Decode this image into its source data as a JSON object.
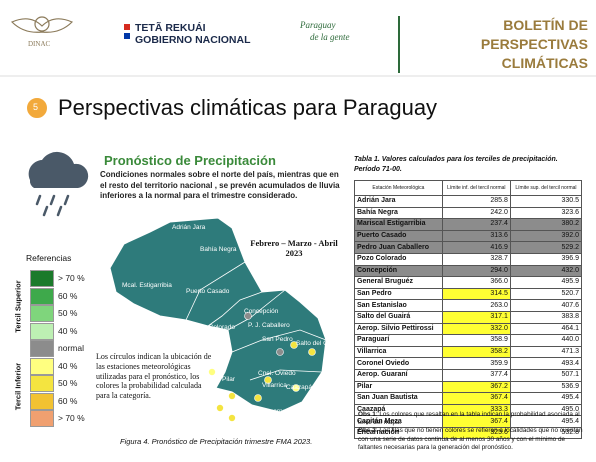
{
  "header": {
    "logo": "DINAC",
    "gov_line1": "TETÃ REKUÁI",
    "gov_line2": "GOBIERNO NACIONAL",
    "slogan_line1": "Paraguay",
    "slogan_line2": "de la gente",
    "bulletin": "BOLETÍN DE PERSPECTIVAS CLIMÁTICAS"
  },
  "section": {
    "number": "5",
    "title": "Perspectivas climáticas para Paraguay"
  },
  "forecast": {
    "subtitle": "Pronóstico de Precipitación",
    "text": "Condiciones normales sobre el norte del país, mientras que en el resto del territorio nacional , se prevén acumulados de lluvia inferiores a la normal para el trimestre considerado.",
    "period": "Febrero – Marzo - Abril 2023",
    "note": "Los círculos indican la ubicación de las estaciones meteorológicas utilizadas para el pronóstico, los colores la probabilidad calculada para la categoría.",
    "caption": "Figura 4. Pronóstico de Precipitación trimestre FMA 2023.",
    "map_labels": [
      "Adrián Jara",
      "Bahía Negra",
      "Mcal. Estigarribia",
      "Puerto Casado",
      "Concepción",
      "P. J. Caballero",
      "Pozo Colorado",
      "San Pedro",
      "Salto del Guairá",
      "Cnel. Oviedo",
      "Villarrica",
      "Caazapá",
      "Pilar",
      "Encarnación"
    ]
  },
  "legend": {
    "title": "Referencias",
    "upper": "Tercil Superior",
    "lower": "Tercil Inferior",
    "items": [
      {
        "label": "> 70 %",
        "color": "#1b7a2b"
      },
      {
        "label": "60 %",
        "color": "#3ea94b"
      },
      {
        "label": "50 %",
        "color": "#7fd57c"
      },
      {
        "label": "40 %",
        "color": "#bdf0b3"
      },
      {
        "label": "normal",
        "color": "#8c8c8c"
      },
      {
        "label": "40 %",
        "color": "#ffff80"
      },
      {
        "label": "50 %",
        "color": "#f4e440"
      },
      {
        "label": "60 %",
        "color": "#f2c232"
      },
      {
        "label": "> 70 %",
        "color": "#f0a070"
      }
    ]
  },
  "table": {
    "title": "Tabla 1. Valores calculados para los terciles de precipitación.",
    "period": "Período 71-00.",
    "headers": [
      "Estación Meteorológica",
      "Límite inf. del tercil normal",
      "Límite sup. del tercil normal"
    ],
    "rows": [
      {
        "cells": [
          "Adrián Jara",
          "285.8",
          "330.5"
        ]
      },
      {
        "cells": [
          "Bahía Negra",
          "242.0",
          "323.6"
        ]
      },
      {
        "cells": [
          "Mariscal Estigarribia",
          "237.4",
          "380.2"
        ],
        "row_color": "#8c8c8c"
      },
      {
        "cells": [
          "Puerto Casado",
          "313.6",
          "392.0"
        ],
        "row_color": "#8c8c8c"
      },
      {
        "cells": [
          "Pedro Juan Caballero",
          "416.9",
          "529.2"
        ],
        "row_color": "#8c8c8c"
      },
      {
        "cells": [
          "Pozo Colorado",
          "328.7",
          "396.9"
        ]
      },
      {
        "cells": [
          "Concepción",
          "294.0",
          "432.0"
        ],
        "row_color": "#8c8c8c"
      },
      {
        "cells": [
          "General Bruguéz",
          "366.0",
          "495.9"
        ]
      },
      {
        "cells": [
          "San Pedro",
          "314.5",
          "520.7"
        ],
        "inf_color": "#ffff33"
      },
      {
        "cells": [
          "San Estanislao",
          "263.0",
          "407.6"
        ]
      },
      {
        "cells": [
          "Salto del Guairá",
          "317.1",
          "383.8"
        ],
        "inf_color": "#ffff33"
      },
      {
        "cells": [
          "Aerop. Silvio Pettirossi",
          "332.0",
          "464.1"
        ],
        "inf_color": "#ffff33"
      },
      {
        "cells": [
          "Paraguarí",
          "358.9",
          "440.0"
        ]
      },
      {
        "cells": [
          "Villarrica",
          "358.2",
          "471.3"
        ],
        "inf_color": "#ffff33"
      },
      {
        "cells": [
          "Coronel Oviedo",
          "359.9",
          "493.4"
        ]
      },
      {
        "cells": [
          "Aerop. Guaraní",
          "377.4",
          "507.1"
        ]
      },
      {
        "cells": [
          "Pilar",
          "367.2",
          "536.9"
        ],
        "inf_color": "#ffff33"
      },
      {
        "cells": [
          "San Juan Bautista",
          "367.4",
          "495.4"
        ],
        "inf_color": "#ffff33"
      },
      {
        "cells": [
          "Caazapá",
          "333.3",
          "495.0"
        ],
        "inf_color": "#ffff33"
      },
      {
        "cells": [
          "Capitán Meza",
          "367.4",
          "495.4"
        ],
        "inf_color": "#ffff33"
      },
      {
        "cells": [
          "Encarnación",
          "325.6",
          "532.8"
        ],
        "inf_color": "#ffff33"
      }
    ],
    "obs1_label": "Obs 1",
    "obs1": ": Los colores que resaltan en la tabla indican la probabilidad asociada al tercil del mapa.",
    "obs2_label": "Obs 2",
    "obs2": ": Las filas que no tienen colores se refieren a localidades que no cuentan con una serie de datos continua de al menos 30 años y con el mínimo de faltantes necesarias para la generación del pronóstico."
  }
}
